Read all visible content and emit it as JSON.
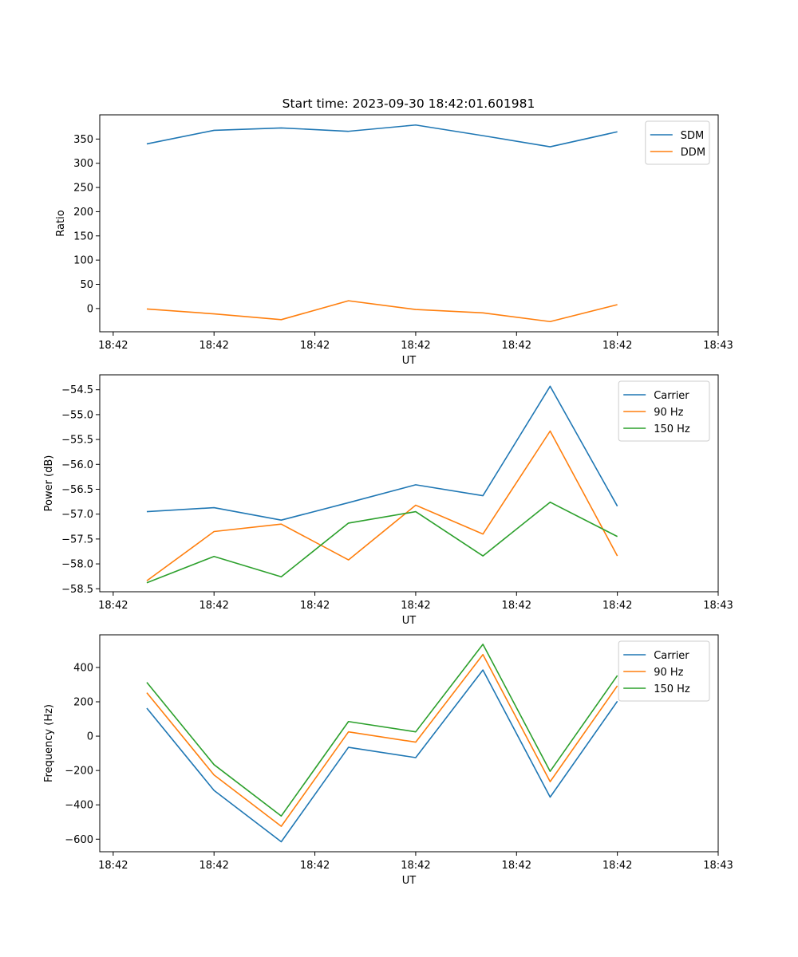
{
  "figure_title": "Start time: 2023-09-30 18:42:01.601981",
  "chart_data": [
    {
      "type": "line",
      "title": "Start time: 2023-09-30 18:42:01.601981",
      "xlabel": "UT",
      "ylabel": "Ratio",
      "x": [
        1,
        2,
        3,
        4,
        5,
        6,
        7,
        8
      ],
      "x_ticks": [
        0.5,
        2,
        3.5,
        5,
        6.5,
        8,
        9.5
      ],
      "x_tick_labels": [
        "18:42",
        "18:42",
        "18:42",
        "18:42",
        "18:42",
        "18:42",
        "18:43"
      ],
      "xlim": [
        0.3,
        9.5
      ],
      "ylim": [
        -48,
        400
      ],
      "y_ticks": [
        0,
        50,
        100,
        150,
        200,
        250,
        300,
        350
      ],
      "y_tick_labels": [
        "0",
        "50",
        "100",
        "150",
        "200",
        "250",
        "300",
        "350"
      ],
      "legend_position": "top-right",
      "series": [
        {
          "name": "SDM",
          "color": "#1f77b4",
          "values": [
            340,
            368,
            373,
            366,
            379,
            357,
            334,
            365
          ]
        },
        {
          "name": "DDM",
          "color": "#ff7f0e",
          "values": [
            -1,
            -11,
            -23,
            16,
            -2,
            -9,
            -27,
            8
          ]
        }
      ]
    },
    {
      "type": "line",
      "xlabel": "UT",
      "ylabel": "Power (dB)",
      "x": [
        1,
        2,
        3,
        4,
        5,
        6,
        7,
        8
      ],
      "x_ticks": [
        0.5,
        2,
        3.5,
        5,
        6.5,
        8,
        9.5
      ],
      "x_tick_labels": [
        "18:42",
        "18:42",
        "18:42",
        "18:42",
        "18:42",
        "18:42",
        "18:43"
      ],
      "xlim": [
        0.3,
        9.5
      ],
      "ylim": [
        -58.56,
        -54.2
      ],
      "y_ticks": [
        -58.5,
        -58.0,
        -57.5,
        -57.0,
        -56.5,
        -56.0,
        -55.5,
        -55.0,
        -54.5
      ],
      "y_tick_labels": [
        "−58.5",
        "−58.0",
        "−57.5",
        "−57.0",
        "−56.5",
        "−56.0",
        "−55.5",
        "−55.0",
        "−54.5"
      ],
      "legend_position": "top-right",
      "series": [
        {
          "name": "Carrier",
          "color": "#1f77b4",
          "values": [
            -56.95,
            -56.87,
            -57.12,
            -56.77,
            -56.41,
            -56.63,
            -54.43,
            -56.84
          ]
        },
        {
          "name": "90 Hz",
          "color": "#ff7f0e",
          "values": [
            -58.34,
            -57.35,
            -57.2,
            -57.92,
            -56.82,
            -57.4,
            -55.33,
            -57.84
          ]
        },
        {
          "name": "150 Hz",
          "color": "#2ca02c",
          "values": [
            -58.38,
            -57.85,
            -58.26,
            -57.18,
            -56.95,
            -57.84,
            -56.76,
            -57.45
          ]
        }
      ]
    },
    {
      "type": "line",
      "xlabel": "UT",
      "ylabel": "Frequency (Hz)",
      "x": [
        1,
        2,
        3,
        4,
        5,
        6,
        7,
        8
      ],
      "x_ticks": [
        0.5,
        2,
        3.5,
        5,
        6.5,
        8,
        9.5
      ],
      "x_tick_labels": [
        "18:42",
        "18:42",
        "18:42",
        "18:42",
        "18:42",
        "18:42",
        "18:43"
      ],
      "xlim": [
        0.3,
        9.5
      ],
      "ylim": [
        -673,
        590
      ],
      "y_ticks": [
        -600,
        -400,
        -200,
        0,
        200,
        400
      ],
      "y_tick_labels": [
        "−600",
        "−400",
        "−200",
        "0",
        "200",
        "400"
      ],
      "legend_position": "top-right",
      "series": [
        {
          "name": "Carrier",
          "color": "#1f77b4",
          "values": [
            163,
            -316,
            -615,
            -65,
            -125,
            385,
            -355,
            203
          ]
        },
        {
          "name": "90 Hz",
          "color": "#ff7f0e",
          "values": [
            253,
            -226,
            -525,
            25,
            -35,
            475,
            -265,
            293
          ]
        },
        {
          "name": "150 Hz",
          "color": "#2ca02c",
          "values": [
            313,
            -166,
            -465,
            85,
            25,
            535,
            -205,
            353
          ]
        }
      ]
    }
  ]
}
